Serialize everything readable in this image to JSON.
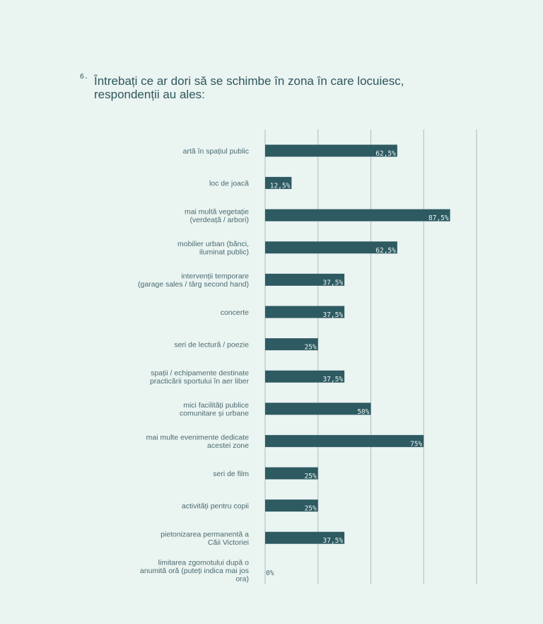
{
  "question": {
    "number": "6.",
    "title_line1": "Întrebați ce ar dori să se schimbe în zona în care locuiesc,",
    "title_line2": "respondenții au ales:"
  },
  "colors": {
    "background": "#eaf4f1",
    "bar": "#2e5a62",
    "gridline": "#a9bcc0",
    "text": "#4b6a70"
  },
  "chart_data": {
    "type": "bar",
    "orientation": "horizontal",
    "xlim": [
      0,
      100
    ],
    "grid": true,
    "categories": [
      [
        "artă în spațiul public"
      ],
      [
        "loc de joacă"
      ],
      [
        "mai multă vegetație",
        "(verdeață / arbori)"
      ],
      [
        "mobilier urban (bănci,",
        "iluminat public)"
      ],
      [
        "intervenții temporare",
        "(garage sales / târg second hand)"
      ],
      [
        "concerte"
      ],
      [
        "seri de lectură / poezie"
      ],
      [
        "spații / echipamente destinate",
        "practicării sportului în aer liber"
      ],
      [
        "mici facilități publice",
        "comunitare și urbane"
      ],
      [
        "mai multe evenimente dedicate",
        "acestei zone"
      ],
      [
        "seri de film"
      ],
      [
        "activități pentru copii"
      ],
      [
        "pietonizarea permanentă a",
        "Căii Victoriei"
      ],
      [
        "limitarea zgomotului după o",
        "anumită oră (puteți indica mai jos",
        "ora)"
      ]
    ],
    "values": [
      62.5,
      12.5,
      87.5,
      62.5,
      37.5,
      37.5,
      25,
      37.5,
      50,
      75,
      25,
      25,
      37.5,
      0
    ],
    "value_labels": [
      "62,5%",
      "12,5%",
      "87,5%",
      "62,5%",
      "37,5%",
      "37,5%",
      "25%",
      "37,5%",
      "50%",
      "75%",
      "25%",
      "25%",
      "37,5%",
      "0%"
    ]
  }
}
